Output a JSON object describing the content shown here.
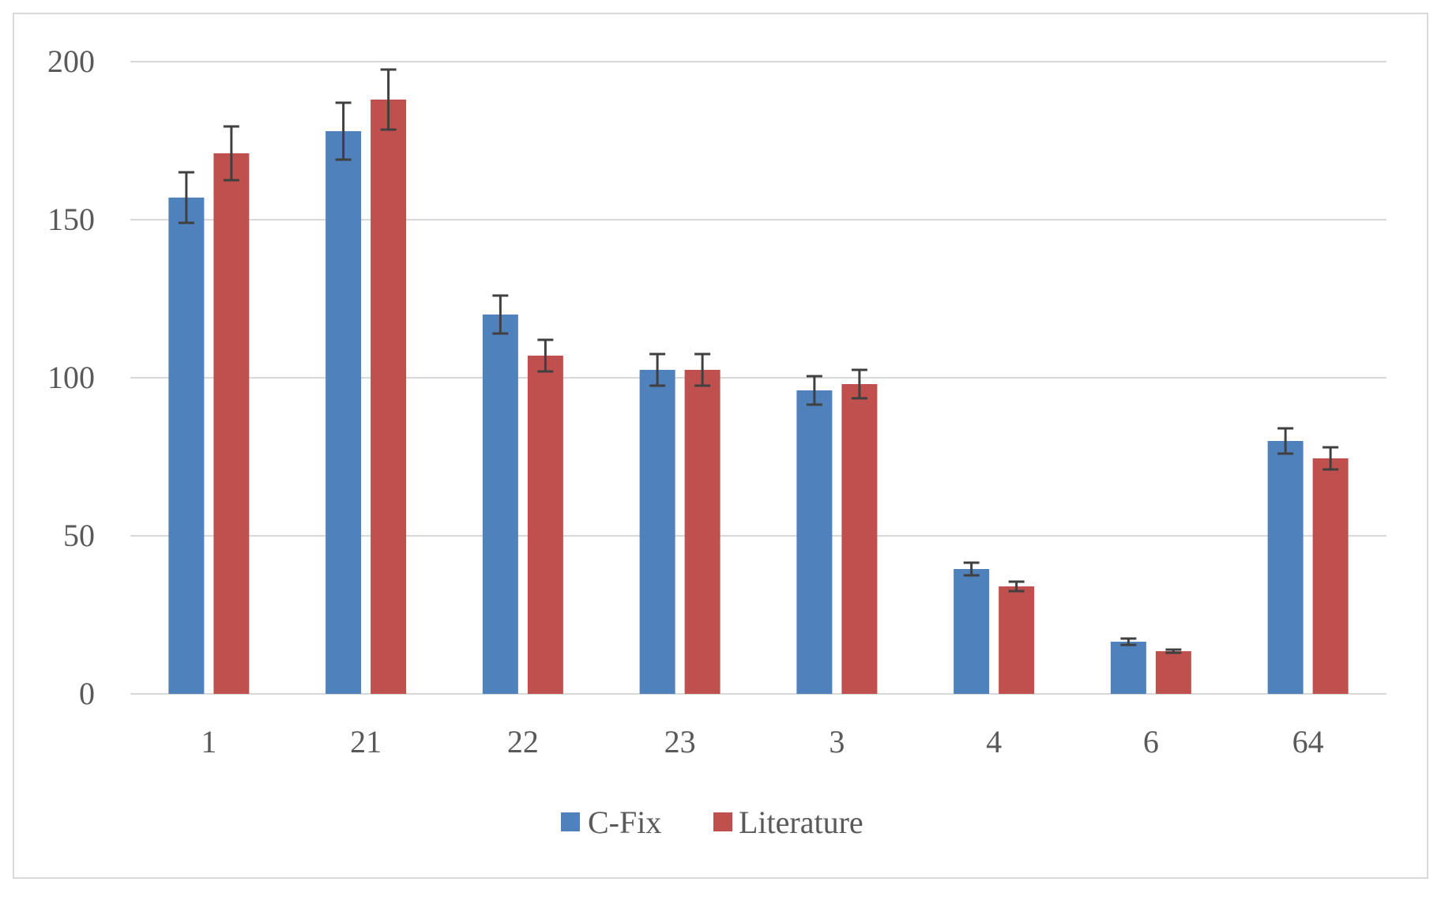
{
  "chart_data": {
    "type": "bar",
    "title": "",
    "xlabel": "",
    "ylabel": "",
    "categories": [
      "1",
      "21",
      "22",
      "23",
      "3",
      "4",
      "6",
      "64"
    ],
    "series": [
      {
        "name": "C-Fix",
        "color": "#4f81bd",
        "values": [
          157,
          178,
          120,
          102.5,
          96,
          39.5,
          16.5,
          80
        ],
        "errors": [
          8,
          9,
          6,
          5,
          4.5,
          2,
          1,
          4
        ]
      },
      {
        "name": "Literature",
        "color": "#c0504d",
        "values": [
          171,
          188,
          107,
          102.5,
          98,
          34,
          13.5,
          74.5
        ],
        "errors": [
          8.5,
          9.5,
          5,
          5,
          4.5,
          1.5,
          0.5,
          3.5
        ]
      }
    ],
    "ylim": [
      0,
      200
    ],
    "yticks": [
      "0",
      "50",
      "100",
      "150",
      "200"
    ],
    "grid": true,
    "legend": "bottom"
  }
}
